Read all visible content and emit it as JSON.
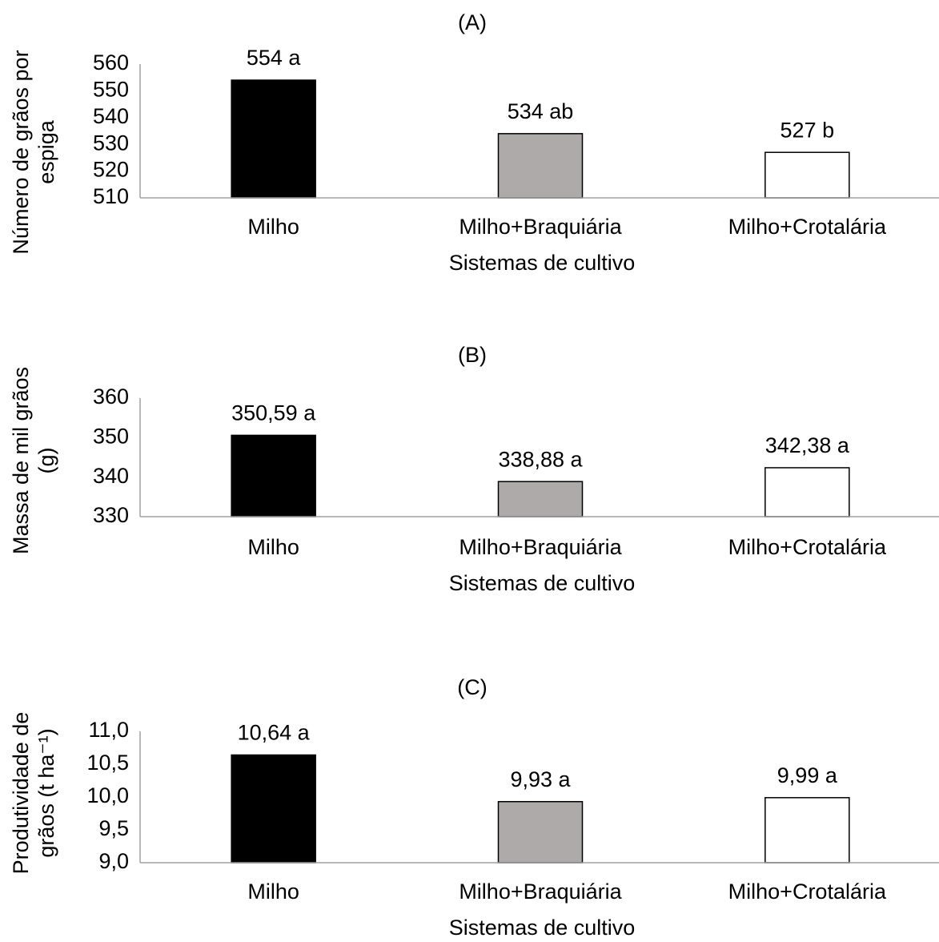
{
  "chart_data": [
    {
      "type": "bar",
      "title": "(A)",
      "x_label": "Sistemas de cultivo",
      "y_label": [
        "Número de grãos por",
        "espiga"
      ],
      "categories": [
        "Milho",
        "Milho+Braquiária",
        "Milho+Crotalária"
      ],
      "values": [
        554,
        534,
        527
      ],
      "value_labels": [
        "554 a",
        "534 ab",
        "527 b"
      ],
      "colors": [
        "#000000",
        "#aeaaaa",
        "#ffffff"
      ],
      "ylim": [
        510,
        560
      ],
      "yticks": [
        510,
        520,
        530,
        540,
        550,
        560
      ]
    },
    {
      "type": "bar",
      "title": "(B)",
      "x_label": "Sistemas de cultivo",
      "y_label": [
        "Massa de mil grãos",
        "(g)"
      ],
      "categories": [
        "Milho",
        "Milho+Braquiária",
        "Milho+Crotalária"
      ],
      "values": [
        350.59,
        338.88,
        342.38
      ],
      "value_labels": [
        "350,59 a",
        "338,88 a",
        "342,38 a"
      ],
      "colors": [
        "#000000",
        "#aeaaaa",
        "#ffffff"
      ],
      "ylim": [
        330,
        360
      ],
      "yticks": [
        330,
        340,
        350,
        360
      ]
    },
    {
      "type": "bar",
      "title": "(C)",
      "x_label": "Sistemas de cultivo",
      "y_label": [
        "Produtividade de",
        "grãos (t ha⁻¹)"
      ],
      "categories": [
        "Milho",
        "Milho+Braquiária",
        "Milho+Crotalária"
      ],
      "values": [
        10.64,
        9.93,
        9.99
      ],
      "value_labels": [
        "10,64 a",
        "9,93 a",
        "9,99 a"
      ],
      "colors": [
        "#000000",
        "#aeaaaa",
        "#ffffff"
      ],
      "ylim": [
        9.0,
        11.0
      ],
      "yticks": [
        {
          "value": 9.0,
          "label": "9,0"
        },
        {
          "value": 9.5,
          "label": "9,5"
        },
        {
          "value": 10.0,
          "label": "10,0"
        },
        {
          "value": 10.5,
          "label": "10,5"
        },
        {
          "value": 11.0,
          "label": "11,0"
        }
      ]
    }
  ]
}
